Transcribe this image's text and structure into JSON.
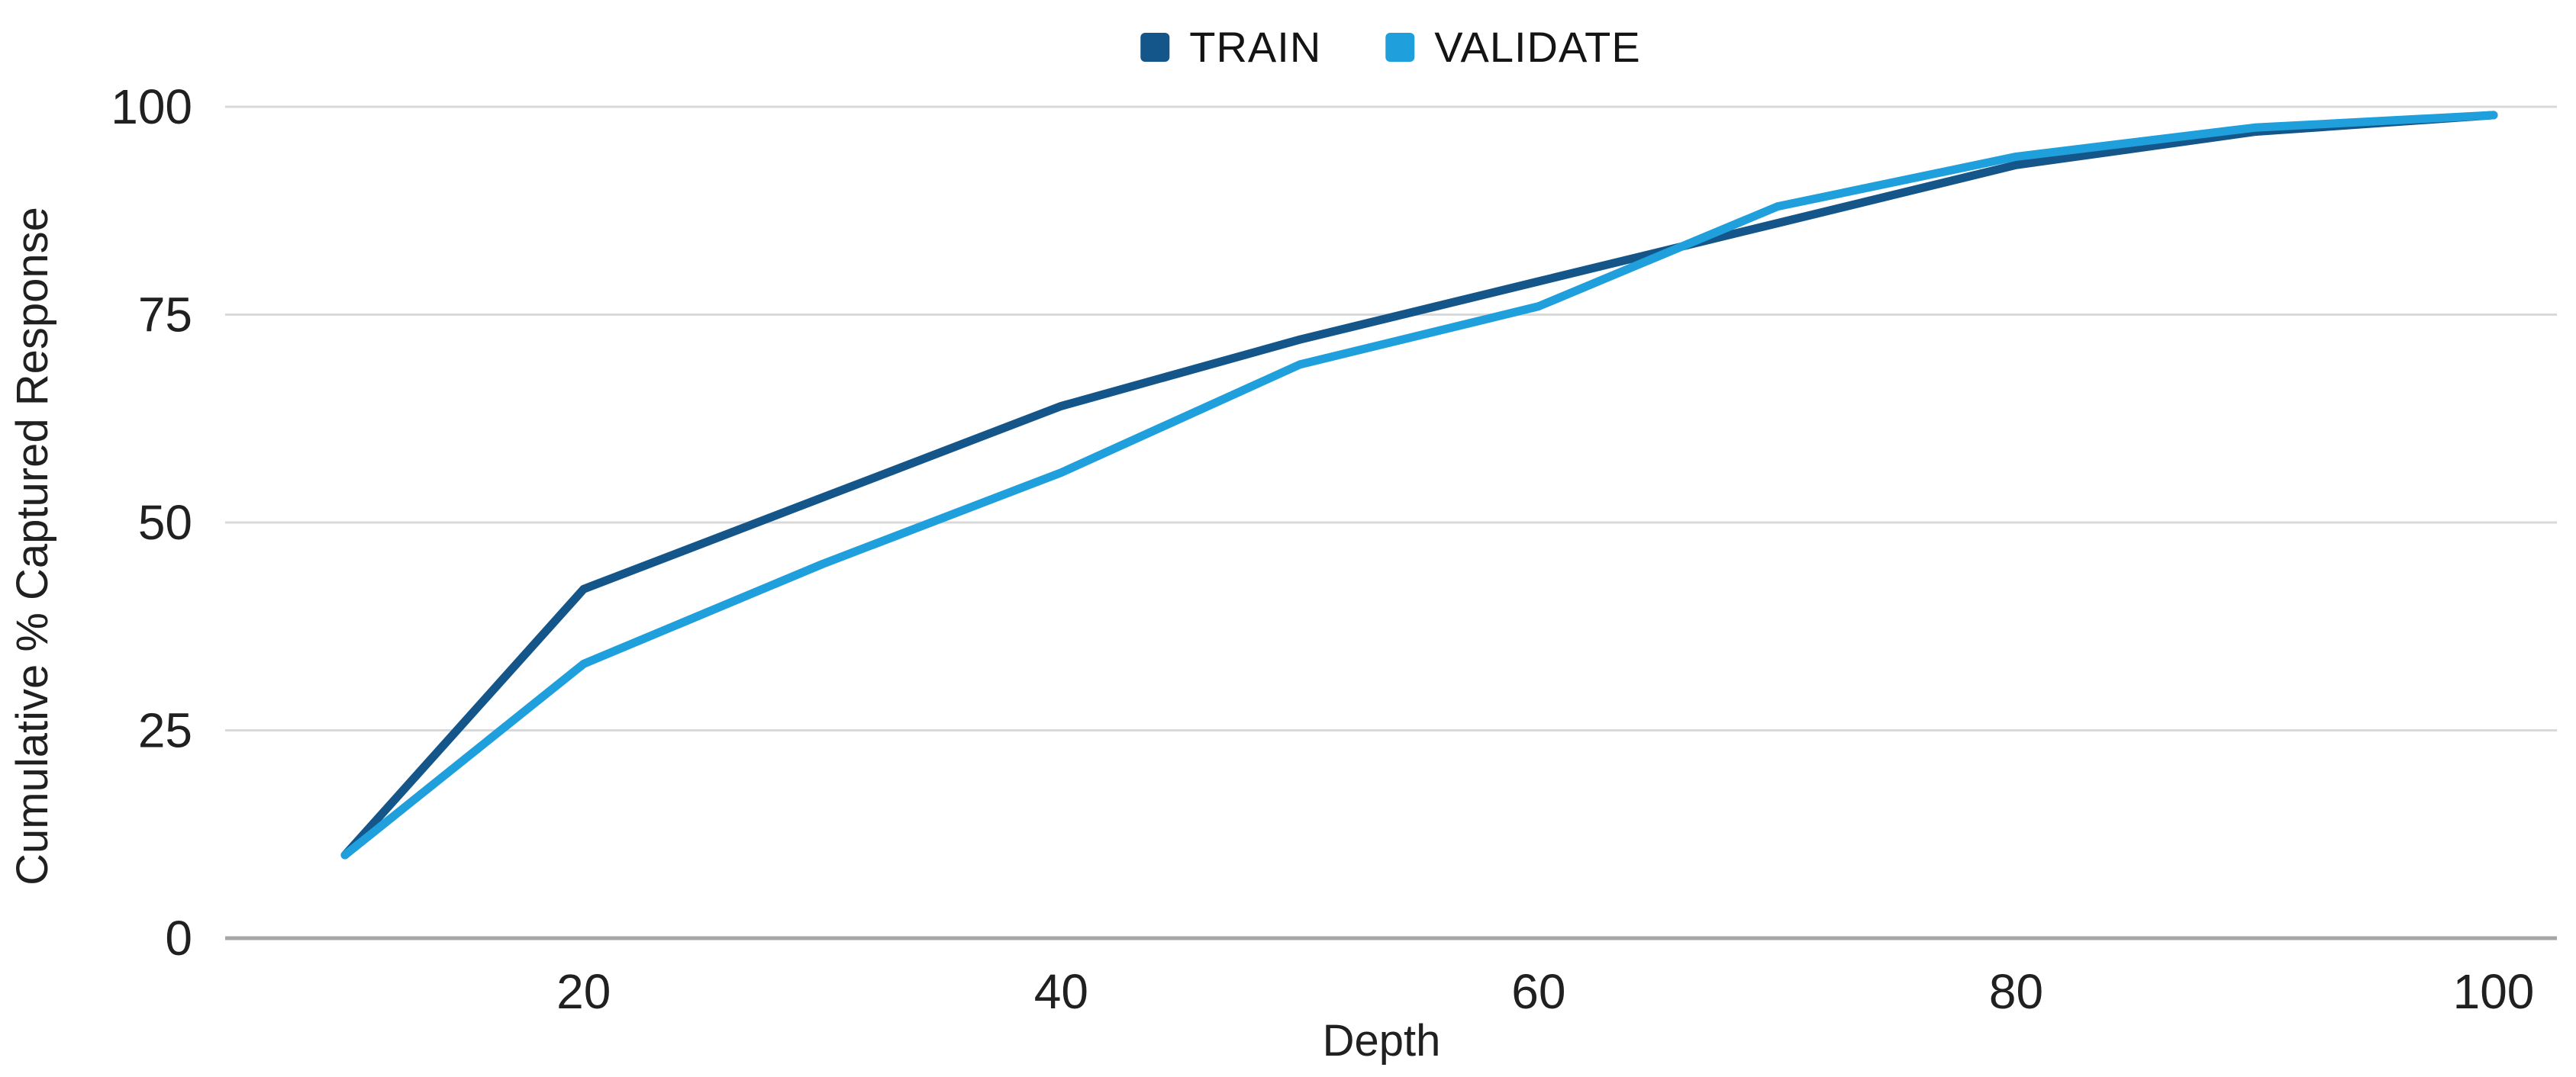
{
  "legend": {
    "items": [
      {
        "label": "TRAIN",
        "color": "#14568a"
      },
      {
        "label": "VALIDATE",
        "color": "#1f9fdc"
      }
    ]
  },
  "axes": {
    "x_label": "Depth",
    "y_label": "Cumulative % Captured Response"
  },
  "chart_data": {
    "type": "line",
    "x": [
      10,
      20,
      30,
      40,
      50,
      60,
      70,
      80,
      90,
      100
    ],
    "series": [
      {
        "name": "TRAIN",
        "color": "#14568a",
        "values": [
          10,
          42,
          53,
          64,
          72,
          79,
          86,
          93,
          97,
          99
        ]
      },
      {
        "name": "VALIDATE",
        "color": "#1f9fdc",
        "values": [
          10,
          33,
          45,
          56,
          69,
          76,
          88,
          94,
          97.5,
          99
        ]
      }
    ],
    "title": "",
    "xlabel": "Depth",
    "ylabel": "Cumulative % Captured Response",
    "xlim": [
      5,
      103
    ],
    "ylim": [
      0,
      100
    ],
    "x_ticks": [
      20,
      40,
      60,
      80,
      100
    ],
    "y_ticks": [
      0,
      25,
      50,
      75,
      100
    ],
    "grid": true,
    "legend_position": "top-center",
    "grid_color": "#d9d9d9",
    "axis_line_color": "#a6a6a6",
    "text_color": "#202020"
  }
}
